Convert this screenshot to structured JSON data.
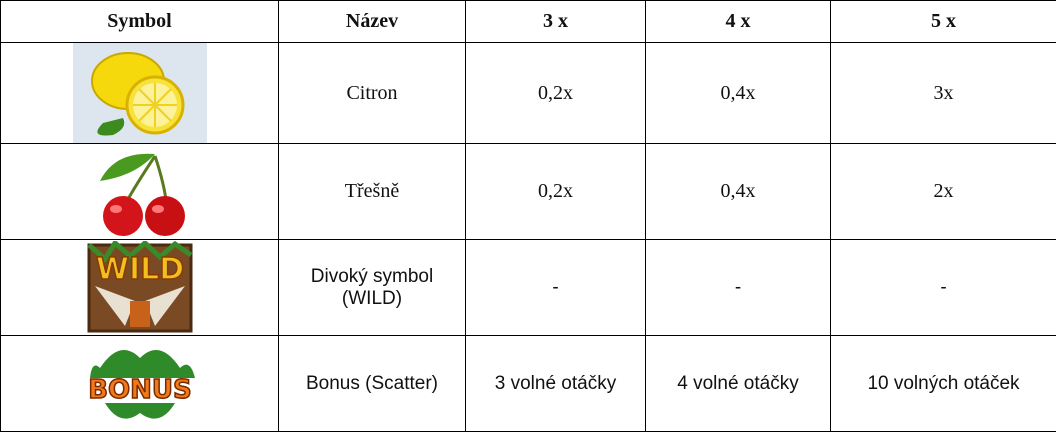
{
  "table": {
    "headers": [
      "Symbol",
      "Název",
      "3 x",
      "4 x",
      "5 x"
    ],
    "rows": [
      [
        "Citron",
        "0,2x",
        "0,4x",
        "3x"
      ],
      [
        "Třešně",
        "0,2x",
        "0,4x",
        "2x"
      ],
      [
        "Divoký symbol (WILD)",
        "-",
        "-",
        "-"
      ],
      [
        "Bonus (Scatter)",
        "3 volné otáčky",
        "4 volné otáčky",
        "10 volných otáček"
      ]
    ],
    "icon_labels": {
      "wild": "WILD",
      "bonus": "BONUS"
    }
  }
}
